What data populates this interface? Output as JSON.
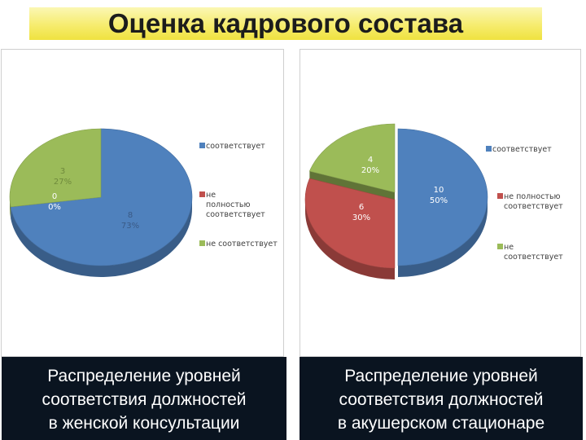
{
  "title": "Оценка кадрового состава",
  "colors": {
    "blue": "#4f81bd",
    "red": "#c0504d",
    "green": "#9bbb59",
    "title_band": "#f4e85a",
    "caption_bg": "#0a1420"
  },
  "chart_data": [
    {
      "type": "pie",
      "series": [
        {
          "label": "соответствует",
          "value": 8,
          "percent": "73%",
          "color": "#4f81bd"
        },
        {
          "label": "не полностью соответствует",
          "value": 0,
          "percent": "0%",
          "color": "#c0504d"
        },
        {
          "label": "не соответствует",
          "value": 3,
          "percent": "27%",
          "color": "#9bbb59"
        }
      ],
      "data_labels": [
        {
          "value": "8",
          "percent": "73%"
        },
        {
          "value": "0",
          "percent": "0%"
        },
        {
          "value": "3",
          "percent": "27%"
        }
      ],
      "legend": [
        "соответствует",
        "не полностью соответствует",
        "не соответствует"
      ],
      "legend_position": "right",
      "caption": [
        "Распределение уровней",
        "соответствия должностей",
        "в женской консультации"
      ]
    },
    {
      "type": "pie",
      "series": [
        {
          "label": "соответствует",
          "value": 10,
          "percent": "50%",
          "color": "#4f81bd"
        },
        {
          "label": "не полностью соответствует",
          "value": 6,
          "percent": "30%",
          "color": "#c0504d"
        },
        {
          "label": "не соответствует",
          "value": 4,
          "percent": "20%",
          "color": "#9bbb59"
        }
      ],
      "data_labels": [
        {
          "value": "10",
          "percent": "50%"
        },
        {
          "value": "6",
          "percent": "30%"
        },
        {
          "value": "4",
          "percent": "20%"
        }
      ],
      "legend": [
        "соответствует",
        "не полностью соответствует",
        "не соответствует"
      ],
      "legend_position": "right",
      "caption": [
        "Распределение уровней",
        "соответствия должностей",
        "в акушерском стационаре"
      ]
    }
  ]
}
